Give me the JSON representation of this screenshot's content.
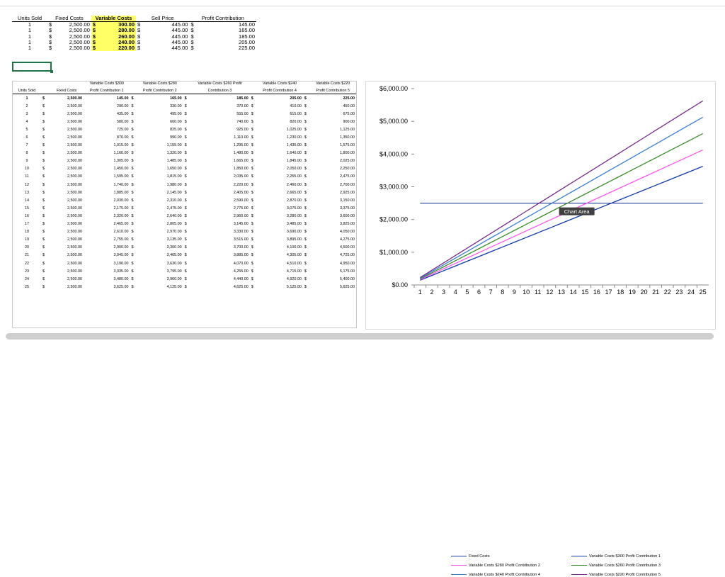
{
  "top_table": {
    "headers": [
      "Units Sold",
      "Fixed Costs",
      "Variable Costs",
      "Sell Price",
      "Profit Contribution"
    ],
    "currency": "$",
    "rows": [
      {
        "units": "1",
        "fixed": "2,500.00",
        "variable": "300.00",
        "sell": "445.00",
        "profit": "145.00"
      },
      {
        "units": "1",
        "fixed": "2,500.00",
        "variable": "280.00",
        "sell": "445.00",
        "profit": "165.00"
      },
      {
        "units": "1",
        "fixed": "2,500.00",
        "variable": "260.00",
        "sell": "445.00",
        "profit": "185.00"
      },
      {
        "units": "1",
        "fixed": "2,500.00",
        "variable": "240.00",
        "sell": "445.00",
        "profit": "205.00"
      },
      {
        "units": "1",
        "fixed": "2,500.00",
        "variable": "220.00",
        "sell": "445.00",
        "profit": "225.00"
      }
    ]
  },
  "main_table": {
    "headers": {
      "units": "Units Sold",
      "fixed": "Fixed Costs",
      "p1a": "Variable Costs $300",
      "p1b": "Profit Contribution 1",
      "p2a": "Variable Costs $280",
      "p2b": "Profit Contribution 2",
      "p3a": "Variable Costs $260  Profit",
      "p3b": "Contribution 3",
      "p4a": "Variable Costs $240",
      "p4b": "Profit Contribution 4",
      "p5a": "Variable Costs $220",
      "p5b": "Profit Contribution 5"
    },
    "currency": "$",
    "rows": [
      [
        "1",
        "2,500.00",
        "145.00",
        "165.00",
        "185.00",
        "205.00",
        "225.00"
      ],
      [
        "2",
        "2,500.00",
        "290.00",
        "330.00",
        "370.00",
        "410.00",
        "450.00"
      ],
      [
        "3",
        "2,500.00",
        "435.00",
        "495.00",
        "555.00",
        "615.00",
        "675.00"
      ],
      [
        "4",
        "2,500.00",
        "580.00",
        "660.00",
        "740.00",
        "820.00",
        "900.00"
      ],
      [
        "5",
        "2,500.00",
        "725.00",
        "825.00",
        "925.00",
        "1,025.00",
        "1,125.00"
      ],
      [
        "6",
        "2,500.00",
        "870.00",
        "990.00",
        "1,110.00",
        "1,230.00",
        "1,350.00"
      ],
      [
        "7",
        "2,500.00",
        "1,015.00",
        "1,155.00",
        "1,295.00",
        "1,435.00",
        "1,575.00"
      ],
      [
        "8",
        "2,500.00",
        "1,160.00",
        "1,320.00",
        "1,480.00",
        "1,640.00",
        "1,800.00"
      ],
      [
        "9",
        "2,500.00",
        "1,305.00",
        "1,485.00",
        "1,665.00",
        "1,845.00",
        "2,025.00"
      ],
      [
        "10",
        "2,500.00",
        "1,450.00",
        "1,650.00",
        "1,850.00",
        "2,050.00",
        "2,250.00"
      ],
      [
        "11",
        "2,500.00",
        "1,595.00",
        "1,815.00",
        "2,035.00",
        "2,255.00",
        "2,475.00"
      ],
      [
        "12",
        "2,500.00",
        "1,740.00",
        "1,980.00",
        "2,220.00",
        "2,460.00",
        "2,700.00"
      ],
      [
        "13",
        "2,500.00",
        "1,885.00",
        "2,145.00",
        "2,405.00",
        "2,665.00",
        "2,925.00"
      ],
      [
        "14",
        "2,500.00",
        "2,030.00",
        "2,310.00",
        "2,590.00",
        "2,870.00",
        "3,150.00"
      ],
      [
        "15",
        "2,500.00",
        "2,175.00",
        "2,475.00",
        "2,775.00",
        "3,075.00",
        "3,375.00"
      ],
      [
        "16",
        "2,500.00",
        "2,320.00",
        "2,640.00",
        "2,960.00",
        "3,280.00",
        "3,600.00"
      ],
      [
        "17",
        "2,500.00",
        "2,465.00",
        "2,805.00",
        "3,145.00",
        "3,485.00",
        "3,825.00"
      ],
      [
        "18",
        "2,500.00",
        "2,610.00",
        "2,970.00",
        "3,330.00",
        "3,690.00",
        "4,050.00"
      ],
      [
        "19",
        "2,500.00",
        "2,755.00",
        "3,135.00",
        "3,515.00",
        "3,895.00",
        "4,275.00"
      ],
      [
        "20",
        "2,500.00",
        "2,900.00",
        "3,300.00",
        "3,700.00",
        "4,100.00",
        "4,500.00"
      ],
      [
        "21",
        "2,500.00",
        "3,045.00",
        "3,465.00",
        "3,885.00",
        "4,305.00",
        "4,725.00"
      ],
      [
        "22",
        "2,500.00",
        "3,190.00",
        "3,630.00",
        "4,070.00",
        "4,510.00",
        "4,950.00"
      ],
      [
        "23",
        "2,500.00",
        "3,335.00",
        "3,795.00",
        "4,255.00",
        "4,715.00",
        "5,175.00"
      ],
      [
        "24",
        "2,500.00",
        "3,480.00",
        "3,960.00",
        "4,440.00",
        "4,920.00",
        "5,400.00"
      ],
      [
        "25",
        "2,500.00",
        "3,625.00",
        "4,125.00",
        "4,625.00",
        "5,125.00",
        "5,625.00"
      ]
    ]
  },
  "chart_data": {
    "type": "line",
    "x": [
      1,
      2,
      3,
      4,
      5,
      6,
      7,
      8,
      9,
      10,
      11,
      12,
      13,
      14,
      15,
      16,
      17,
      18,
      19,
      20,
      21,
      22,
      23,
      24,
      25
    ],
    "ylim": [
      0,
      6000
    ],
    "y_ticks": [
      "$0.00",
      "$1,000.00",
      "$2,000.00",
      "$3,000.00",
      "$4,000.00",
      "$5,000.00",
      "$6,000.00"
    ],
    "tooltip": "Chart Area",
    "series": [
      {
        "name": "Fixed Costs",
        "color": "#1f3fa0",
        "values": [
          2500,
          2500,
          2500,
          2500,
          2500,
          2500,
          2500,
          2500,
          2500,
          2500,
          2500,
          2500,
          2500,
          2500,
          2500,
          2500,
          2500,
          2500,
          2500,
          2500,
          2500,
          2500,
          2500,
          2500,
          2500
        ]
      },
      {
        "name": "Variable Costs $300  Profit Contribution 1",
        "color": "#0f3aa8",
        "values": [
          145,
          290,
          435,
          580,
          725,
          870,
          1015,
          1160,
          1305,
          1450,
          1595,
          1740,
          1885,
          2030,
          2175,
          2320,
          2465,
          2610,
          2755,
          2900,
          3045,
          3190,
          3335,
          3480,
          3625
        ]
      },
      {
        "name": "Variable Costs $280  Profit Contribution 2",
        "color": "#ff55ee",
        "values": [
          165,
          330,
          495,
          660,
          825,
          990,
          1155,
          1320,
          1485,
          1650,
          1815,
          1980,
          2145,
          2310,
          2475,
          2640,
          2805,
          2970,
          3135,
          3300,
          3465,
          3630,
          3795,
          3960,
          4125
        ]
      },
      {
        "name": "Variable Costs $260  Profit Contribution 3",
        "color": "#3a8c2a",
        "values": [
          185,
          370,
          555,
          740,
          925,
          1110,
          1295,
          1480,
          1665,
          1850,
          2035,
          2220,
          2405,
          2590,
          2775,
          2960,
          3145,
          3330,
          3515,
          3700,
          3885,
          4070,
          4255,
          4440,
          4625
        ]
      },
      {
        "name": "Variable Costs $240  Profit Contribution 4",
        "color": "#3a7fd4",
        "values": [
          205,
          410,
          615,
          820,
          1025,
          1230,
          1435,
          1640,
          1845,
          2050,
          2255,
          2460,
          2665,
          2870,
          3075,
          3280,
          3485,
          3690,
          3895,
          4100,
          4305,
          4510,
          4715,
          4920,
          5125
        ]
      },
      {
        "name": "Variable Costs $220  Profit Contribution 5",
        "color": "#7a2b8c",
        "values": [
          225,
          450,
          675,
          900,
          1125,
          1350,
          1575,
          1800,
          2025,
          2250,
          2475,
          2700,
          2925,
          3150,
          3375,
          3600,
          3825,
          4050,
          4275,
          4500,
          4725,
          4950,
          5175,
          5400,
          5625
        ]
      }
    ],
    "legend": [
      {
        "text": "Fixed Costs",
        "color": "#1f3fa0"
      },
      {
        "text": "Variable Costs $300   Profit Contribution 1",
        "color": "#0f3aa8"
      },
      {
        "text": "Variable Costs $280   Profit Contribution 2",
        "color": "#ff55ee"
      },
      {
        "text": "Variable Costs $260   Profit Contribution 3",
        "color": "#3a8c2a"
      },
      {
        "text": "Variable Costs $240   Profit Contribution 4",
        "color": "#3a7fd4"
      },
      {
        "text": "Variable Costs $220   Profit Contribution 5",
        "color": "#7a2b8c"
      }
    ]
  }
}
